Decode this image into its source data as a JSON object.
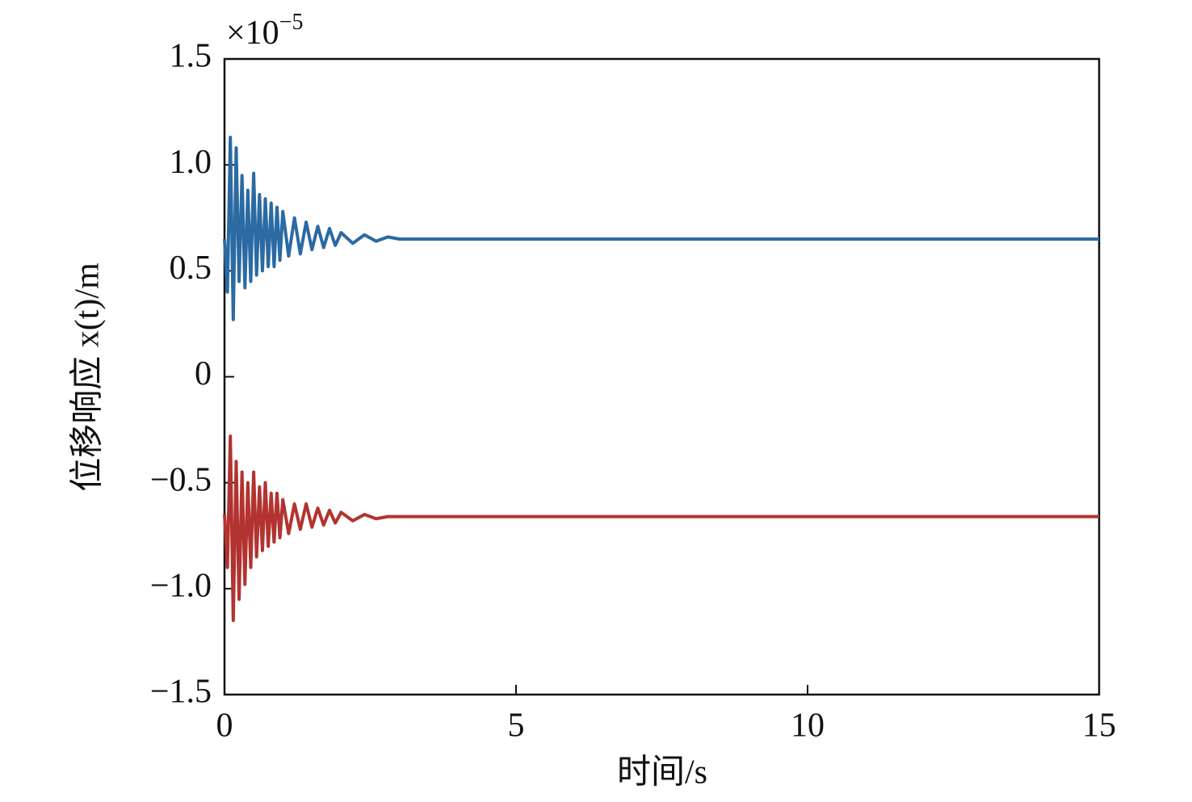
{
  "chart_data": {
    "type": "line",
    "x_label": "时间/s",
    "y_label": "位移响应 x(t)/m",
    "y_multiplier": {
      "base": "×10",
      "exponent": "−5"
    },
    "x": [
      0,
      0.05,
      0.1,
      0.15,
      0.2,
      0.25,
      0.3,
      0.35,
      0.4,
      0.45,
      0.5,
      0.55,
      0.6,
      0.65,
      0.7,
      0.75,
      0.8,
      0.85,
      0.9,
      0.95,
      1.0,
      1.1,
      1.2,
      1.3,
      1.4,
      1.5,
      1.6,
      1.7,
      1.8,
      1.9,
      2.0,
      2.2,
      2.4,
      2.6,
      2.8,
      3.0,
      15
    ],
    "series": [
      {
        "color": "#2b6aa3",
        "values": [
          0.65,
          0.4,
          1.13,
          0.27,
          1.08,
          0.45,
          0.95,
          0.42,
          0.88,
          0.45,
          0.96,
          0.48,
          0.86,
          0.5,
          0.84,
          0.52,
          0.82,
          0.52,
          0.8,
          0.55,
          0.78,
          0.57,
          0.75,
          0.58,
          0.73,
          0.6,
          0.71,
          0.61,
          0.7,
          0.62,
          0.68,
          0.63,
          0.67,
          0.64,
          0.66,
          0.65,
          0.65
        ]
      },
      {
        "color": "#b2332f",
        "values": [
          -0.65,
          -0.9,
          -0.28,
          -1.15,
          -0.4,
          -1.05,
          -0.45,
          -0.98,
          -0.5,
          -0.9,
          -0.45,
          -0.85,
          -0.52,
          -0.82,
          -0.5,
          -0.8,
          -0.55,
          -0.78,
          -0.55,
          -0.76,
          -0.58,
          -0.74,
          -0.6,
          -0.72,
          -0.6,
          -0.71,
          -0.62,
          -0.7,
          -0.63,
          -0.69,
          -0.64,
          -0.68,
          -0.65,
          -0.67,
          -0.66,
          -0.66,
          -0.66
        ]
      }
    ],
    "xlim": [
      0,
      15
    ],
    "xticks": [
      0,
      5,
      10,
      15
    ],
    "ylim": [
      -1.5,
      1.5
    ],
    "yticks": [
      {
        "value": -1.5,
        "label": "−1.5"
      },
      {
        "value": -1,
        "label": "−1.0"
      },
      {
        "value": -0.5,
        "label": "−0.5"
      },
      0,
      0.5,
      {
        "value": 1,
        "label": "1.0"
      },
      1.5
    ],
    "grid": false
  }
}
